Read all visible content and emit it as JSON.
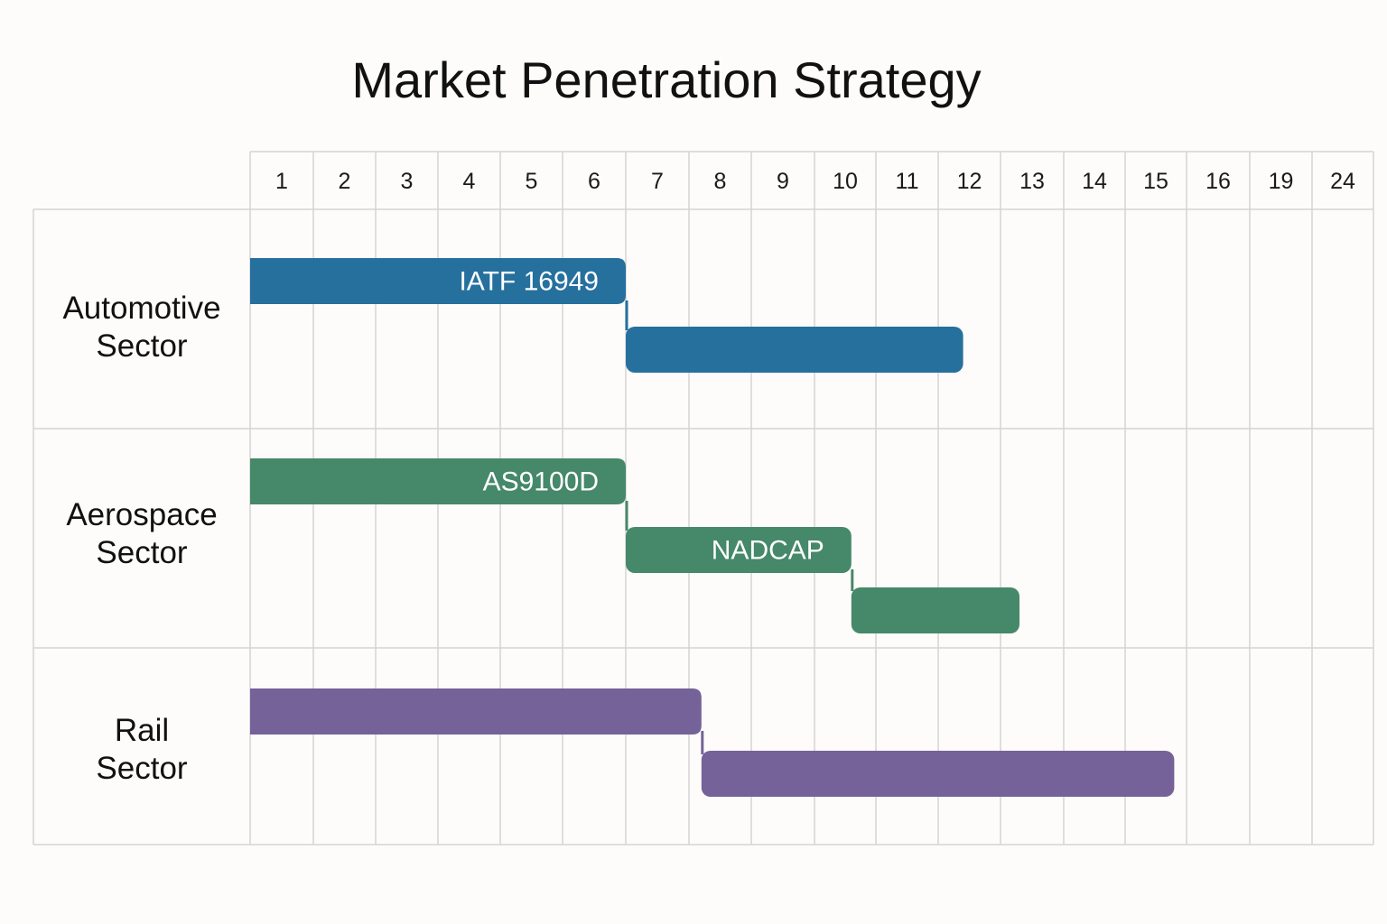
{
  "chart_data": {
    "type": "gantt",
    "title": "Market Penetration Strategy",
    "x_ticks": [
      "1",
      "2",
      "3",
      "4",
      "5",
      "6",
      "7",
      "8",
      "9",
      "10",
      "11",
      "12",
      "13",
      "14",
      "15",
      "16",
      "19",
      "24"
    ],
    "rows": [
      {
        "label_lines": [
          "Automotive",
          "Sector"
        ],
        "color": "#26709e",
        "bars": [
          {
            "label": "IATF 16949",
            "start": 1,
            "end": 7
          },
          {
            "label": "",
            "start": 7,
            "end": 12.4
          }
        ]
      },
      {
        "label_lines": [
          "Aerospace",
          "Sector"
        ],
        "color": "#46886a",
        "bars": [
          {
            "label": "AS9100D",
            "start": 1,
            "end": 7
          },
          {
            "label": "NADCAP",
            "start": 7,
            "end": 10.6
          },
          {
            "label": "",
            "start": 10.6,
            "end": 13.3
          }
        ]
      },
      {
        "label_lines": [
          "Rail",
          "Sector"
        ],
        "color": "#756298",
        "bars": [
          {
            "label": "",
            "start": 1,
            "end": 8.2
          },
          {
            "label": "",
            "start": 8.2,
            "end": 15.8
          }
        ]
      }
    ]
  }
}
